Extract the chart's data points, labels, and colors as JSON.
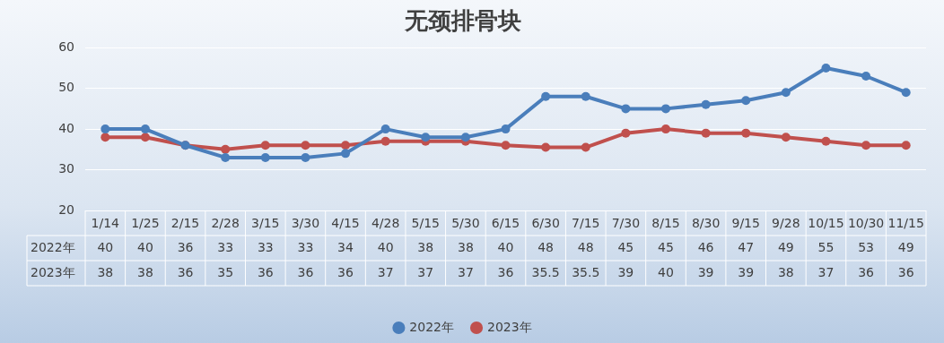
{
  "chart_data": {
    "type": "line",
    "title": "无颈排骨块",
    "categories": [
      "1/14",
      "1/25",
      "2/15",
      "2/28",
      "3/15",
      "3/30",
      "4/15",
      "4/28",
      "5/15",
      "5/30",
      "6/15",
      "6/30",
      "7/15",
      "7/30",
      "8/15",
      "8/30",
      "9/15",
      "9/28",
      "10/15",
      "10/30",
      "11/15"
    ],
    "series": [
      {
        "name": "2022年",
        "color": "#4a7ebb",
        "values": [
          40,
          40,
          36,
          33,
          33,
          33,
          34,
          40,
          38,
          38,
          40,
          48,
          48,
          45,
          45,
          46,
          47,
          49,
          55,
          53,
          49
        ]
      },
      {
        "name": "2023年",
        "color": "#c0504d",
        "values": [
          38,
          38,
          36,
          35,
          36,
          36,
          36,
          37,
          37,
          37,
          36,
          35.5,
          35.5,
          39,
          40,
          39,
          39,
          38,
          37,
          36,
          36
        ]
      }
    ],
    "ylim": [
      20,
      60
    ],
    "yticks": [
      20,
      30,
      40,
      50,
      60
    ],
    "grid": "y",
    "legend": "bottom",
    "marker": "circle",
    "line_style": "solid",
    "data_labels": true
  }
}
